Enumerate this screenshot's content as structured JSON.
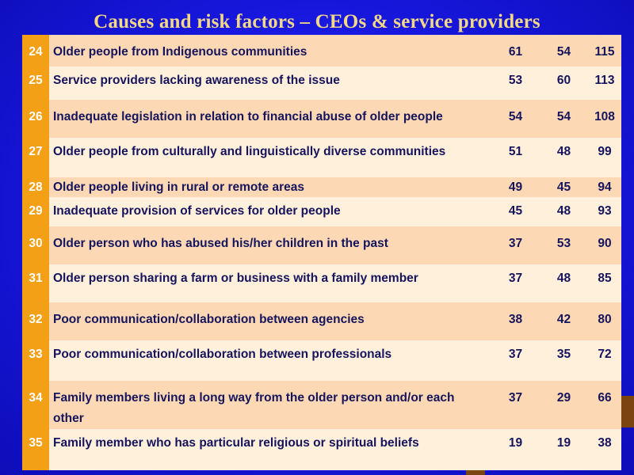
{
  "title": "Causes and risk factors –  CEOs & service providers",
  "rows": [
    {
      "rank": "24",
      "factor": "Older people from Indigenous communities",
      "a": "61",
      "b": "54",
      "total": "115"
    },
    {
      "rank": "25",
      "factor": "Service providers lacking awareness of the issue",
      "a": "53",
      "b": "60",
      "total": "113"
    },
    {
      "rank": "26",
      "factor": "Inadequate legislation in relation to financial abuse of older people",
      "a": "54",
      "b": "54",
      "total": "108"
    },
    {
      "rank": "27",
      "factor": "Older people from culturally and linguistically diverse communities",
      "a": "51",
      "b": "48",
      "total": "99"
    },
    {
      "rank": "28",
      "factor": "Older people living in rural or remote areas",
      "a": "49",
      "b": "45",
      "total": "94"
    },
    {
      "rank": "29",
      "factor": "Inadequate provision of services for older people",
      "a": "45",
      "b": "48",
      "total": "93"
    },
    {
      "rank": "30",
      "factor": "Older person who has abused his/her children in the past",
      "a": "37",
      "b": "53",
      "total": "90"
    },
    {
      "rank": "31",
      "factor": "Older person sharing a farm or business with a family member",
      "a": "37",
      "b": "48",
      "total": "85"
    },
    {
      "rank": "32",
      "factor": "Poor communication/collaboration between agencies",
      "a": "38",
      "b": "42",
      "total": "80"
    },
    {
      "rank": "33",
      "factor": "Poor communication/collaboration between professionals",
      "a": "37",
      "b": "35",
      "total": "72"
    },
    {
      "rank": "34",
      "factor": "Family members living a long way from the older person and/or each other",
      "a": "37",
      "b": "29",
      "total": "66"
    },
    {
      "rank": "35",
      "factor": "Family member who has particular religious or spiritual beliefs",
      "a": "19",
      "b": "19",
      "total": "38"
    }
  ],
  "colors": {
    "background": "#1717dd",
    "title": "#f3d886",
    "rank_column": "#f4a017",
    "row_band_dark": "#fcd9b4",
    "row_band_light": "#fff0dc",
    "text": "#15145c"
  }
}
